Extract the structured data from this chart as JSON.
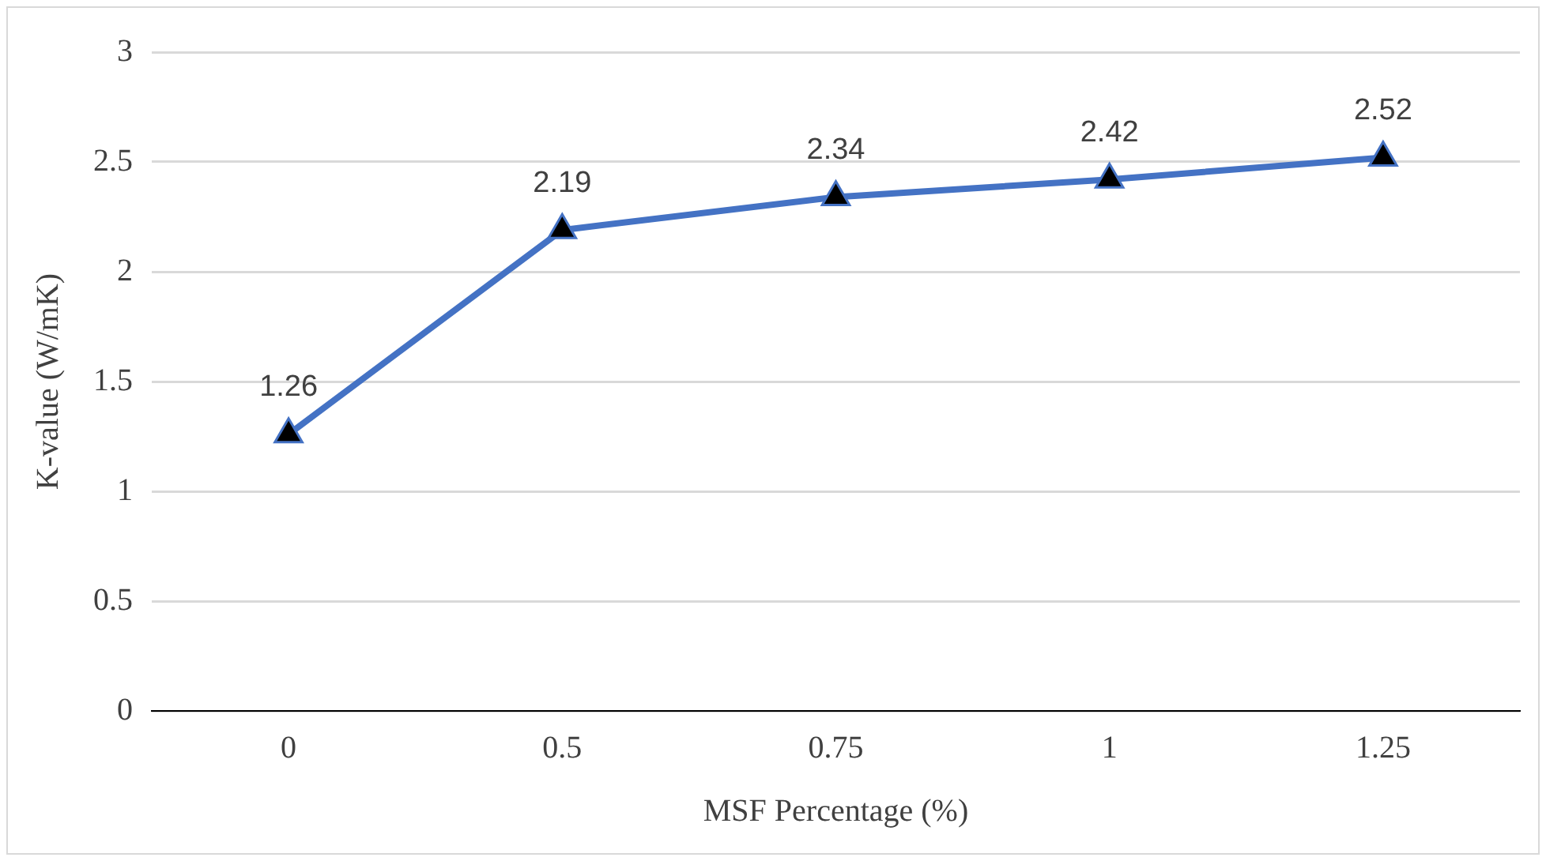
{
  "chart_data": {
    "type": "line",
    "xlabel": "MSF Percentage (%)",
    "ylabel": "K-value (W/mK)",
    "categories": [
      "0",
      "0.5",
      "0.75",
      "1",
      "1.25"
    ],
    "series": [
      {
        "color": "#4472c4",
        "values": [
          1.26,
          2.19,
          2.34,
          2.42,
          2.52
        ]
      }
    ],
    "ylim": [
      0,
      3
    ],
    "yticks": [
      0,
      0.5,
      1,
      1.5,
      2,
      2.5,
      3
    ],
    "grid": "y",
    "legend": false,
    "marker": "triangle",
    "line_style": "solid",
    "data_labels": true
  }
}
